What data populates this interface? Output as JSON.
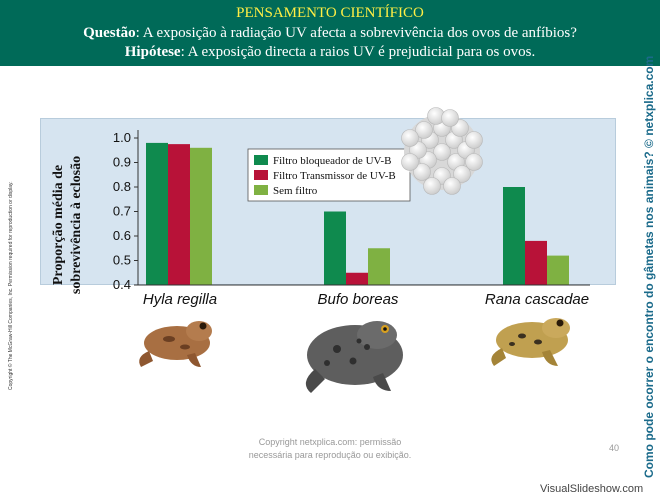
{
  "header": {
    "title": "PENSAMENTO CIENTÍFICO",
    "question_label": "Questão",
    "question_text": ": A exposição à radiação UV afecta a sobrevivência dos ovos de anfíbios?",
    "hypothesis_label": "Hipótese",
    "hypothesis_text": ": A exposição directa a raios UV é prejudicial para os ovos."
  },
  "side_caption": "Como pode ocorrer o encontro do gâmetas nos animais? © netxplica.com",
  "copyright_vertical": "Copyright © The McGraw-Hill Companies, Inc. Permission required for reproduction or display.",
  "footer": {
    "line1": "Copyright netxplica.com: permissão",
    "line2": "necessária para reprodução ou exibição.",
    "page": "40"
  },
  "watermark": "VisualSlideshow.com",
  "chart_data": {
    "type": "bar",
    "ylabel_line1": "Proporção média de",
    "ylabel_line2": "sobrevivência à eclosão",
    "ylim": [
      0.4,
      1.0
    ],
    "yticks": [
      "1.0",
      "0.9",
      "0.8",
      "0.7",
      "0.6",
      "0.5",
      "0.4"
    ],
    "categories": [
      "Hyla regilla",
      "Bufo boreas",
      "Rana cascadae"
    ],
    "series": [
      {
        "name": "Filtro bloqueador de UV-B",
        "color": "#0f8a4e",
        "values": [
          0.98,
          0.7,
          0.8
        ]
      },
      {
        "name": "Filtro Transmissor de UV-B",
        "color": "#b81238",
        "values": [
          0.975,
          0.45,
          0.58
        ]
      },
      {
        "name": "Sem filtro",
        "color": "#7fb142",
        "values": [
          0.96,
          0.55,
          0.52
        ]
      }
    ],
    "legend_position": "top-center"
  }
}
